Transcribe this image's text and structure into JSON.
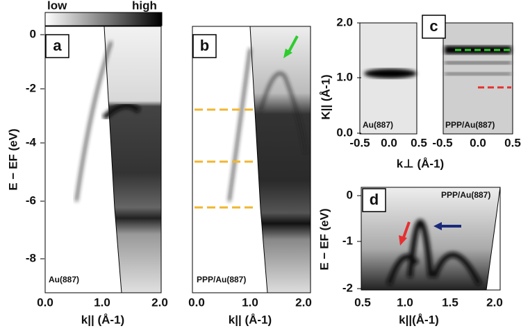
{
  "colorbar": {
    "low": "low",
    "high": "high"
  },
  "panels": [
    {
      "label": "a",
      "samples": [
        "Au(887)"
      ],
      "y_ticks": [
        "0",
        "-2",
        "-4",
        "-6",
        "-8"
      ],
      "x_ticks": [
        "0.0",
        "1.0",
        "2.0"
      ],
      "y_title": "E − EF (eV)",
      "x_title": "k|| (Å-1)"
    },
    {
      "label": "b",
      "samples": [
        "PPP/Au(887)"
      ],
      "x_ticks": [
        "0.0",
        "1.0",
        "2.0"
      ],
      "x_title": "k|| (Å-1)"
    },
    {
      "label": "c",
      "samples": [
        "Au(887)",
        "PPP/Au(887)"
      ],
      "y_ticks": [
        "2.0",
        "1.0",
        "0.0"
      ],
      "x_ticks": [
        "-0.5",
        "0.0",
        "0.5",
        "-0.5",
        "0.0",
        "0.5"
      ],
      "y_title": "K|| (Å-1)",
      "x_title": "k⊥ (Å-1)"
    },
    {
      "label": "d",
      "samples": [
        "PPP/Au(887)"
      ],
      "y_ticks": [
        "0",
        "-1",
        "-2"
      ],
      "x_ticks": [
        "0.5",
        "1.0",
        "1.5",
        "2.0"
      ],
      "y_title": "E − EF (eV)",
      "x_title": "k||(Å-1)"
    }
  ]
}
